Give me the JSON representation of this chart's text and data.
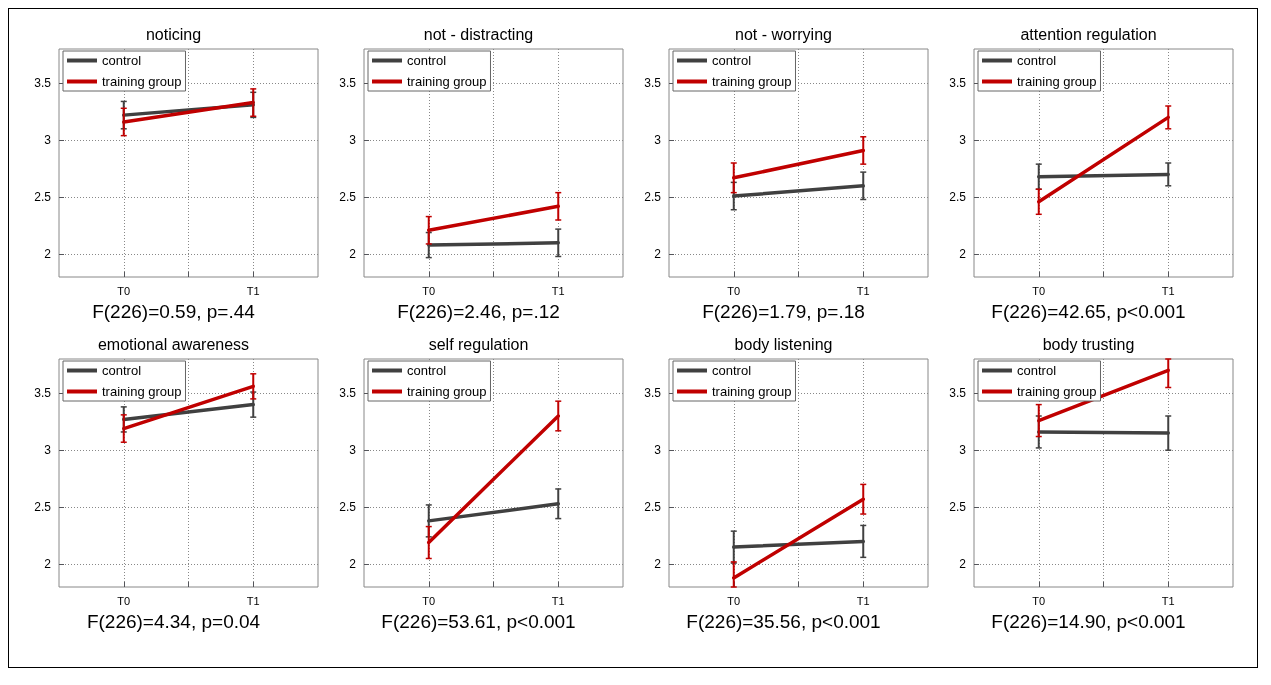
{
  "chart_data": [
    {
      "type": "line",
      "title": "noticing",
      "categories": [
        "T0",
        "T1"
      ],
      "ylim": [
        1.8,
        3.8
      ],
      "yticks": [
        2,
        2.5,
        3,
        3.5
      ],
      "grid": true,
      "legend": "top left",
      "marker": "none",
      "annotations": [
        "F(226)=0.59, p=.44"
      ],
      "series": [
        {
          "name": "control",
          "color": "#404040",
          "values": [
            3.22,
            3.31
          ],
          "errors": [
            0.12,
            0.11
          ]
        },
        {
          "name": "training group",
          "color": "#c00000",
          "values": [
            3.16,
            3.33
          ],
          "errors": [
            0.12,
            0.12
          ]
        }
      ]
    },
    {
      "type": "line",
      "title": "not - distracting",
      "categories": [
        "T0",
        "T1"
      ],
      "ylim": [
        1.8,
        3.8
      ],
      "yticks": [
        2,
        2.5,
        3,
        3.5
      ],
      "grid": true,
      "legend": "top left",
      "marker": "none",
      "annotations": [
        "F(226)=2.46, p=.12"
      ],
      "series": [
        {
          "name": "control",
          "color": "#404040",
          "values": [
            2.08,
            2.1
          ],
          "errors": [
            0.11,
            0.12
          ]
        },
        {
          "name": "training group",
          "color": "#c00000",
          "values": [
            2.21,
            2.42
          ],
          "errors": [
            0.12,
            0.12
          ]
        }
      ]
    },
    {
      "type": "line",
      "title": "not - worrying",
      "categories": [
        "T0",
        "T1"
      ],
      "ylim": [
        1.8,
        3.8
      ],
      "yticks": [
        2,
        2.5,
        3,
        3.5
      ],
      "grid": true,
      "legend": "top left",
      "marker": "none",
      "annotations": [
        "F(226)=1.79, p=.18"
      ],
      "series": [
        {
          "name": "control",
          "color": "#404040",
          "values": [
            2.51,
            2.6
          ],
          "errors": [
            0.12,
            0.12
          ]
        },
        {
          "name": "training group",
          "color": "#c00000",
          "values": [
            2.67,
            2.91
          ],
          "errors": [
            0.13,
            0.12
          ]
        }
      ]
    },
    {
      "type": "line",
      "title": "attention regulation",
      "categories": [
        "T0",
        "T1"
      ],
      "ylim": [
        1.8,
        3.8
      ],
      "yticks": [
        2,
        2.5,
        3,
        3.5
      ],
      "grid": true,
      "legend": "top left",
      "marker": "none",
      "annotations": [
        "F(226)=42.65, p<0.001"
      ],
      "series": [
        {
          "name": "control",
          "color": "#404040",
          "values": [
            2.68,
            2.7
          ],
          "errors": [
            0.11,
            0.1
          ]
        },
        {
          "name": "training group",
          "color": "#c00000",
          "values": [
            2.46,
            3.2
          ],
          "errors": [
            0.11,
            0.1
          ]
        }
      ]
    },
    {
      "type": "line",
      "title": "emotional awareness",
      "categories": [
        "T0",
        "T1"
      ],
      "ylim": [
        1.8,
        3.8
      ],
      "yticks": [
        2,
        2.5,
        3,
        3.5
      ],
      "grid": true,
      "legend": "top left",
      "marker": "none",
      "annotations": [
        "F(226)=4.34, p=0.04"
      ],
      "series": [
        {
          "name": "control",
          "color": "#404040",
          "values": [
            3.27,
            3.4
          ],
          "errors": [
            0.11,
            0.11
          ]
        },
        {
          "name": "training group",
          "color": "#c00000",
          "values": [
            3.19,
            3.56
          ],
          "errors": [
            0.12,
            0.11
          ]
        }
      ]
    },
    {
      "type": "line",
      "title": "self regulation",
      "categories": [
        "T0",
        "T1"
      ],
      "ylim": [
        1.8,
        3.8
      ],
      "yticks": [
        2,
        2.5,
        3,
        3.5
      ],
      "grid": true,
      "legend": "top left",
      "marker": "none",
      "annotations": [
        "F(226)=53.61, p<0.001"
      ],
      "series": [
        {
          "name": "control",
          "color": "#404040",
          "values": [
            2.38,
            2.53
          ],
          "errors": [
            0.14,
            0.13
          ]
        },
        {
          "name": "training group",
          "color": "#c00000",
          "values": [
            2.19,
            3.3
          ],
          "errors": [
            0.14,
            0.13
          ]
        }
      ]
    },
    {
      "type": "line",
      "title": "body listening",
      "categories": [
        "T0",
        "T1"
      ],
      "ylim": [
        1.8,
        3.8
      ],
      "yticks": [
        2,
        2.5,
        3,
        3.5
      ],
      "grid": true,
      "legend": "top left",
      "marker": "none",
      "annotations": [
        "F(226)=35.56, p<0.001"
      ],
      "series": [
        {
          "name": "control",
          "color": "#404040",
          "values": [
            2.15,
            2.2
          ],
          "errors": [
            0.14,
            0.14
          ]
        },
        {
          "name": "training group",
          "color": "#c00000",
          "values": [
            1.88,
            2.57
          ],
          "errors": [
            [
              1.8,
              2.02
            ],
            0.13
          ]
        }
      ]
    },
    {
      "type": "line",
      "title": "body trusting",
      "categories": [
        "T0",
        "T1"
      ],
      "ylim": [
        1.8,
        3.8
      ],
      "yticks": [
        2,
        2.5,
        3,
        3.5
      ],
      "grid": true,
      "legend": "top left",
      "marker": "none",
      "annotations": [
        "F(226)=14.90, p<0.001"
      ],
      "series": [
        {
          "name": "control",
          "color": "#404040",
          "values": [
            3.16,
            3.15
          ],
          "errors": [
            0.14,
            0.15
          ]
        },
        {
          "name": "training group",
          "color": "#c00000",
          "values": [
            3.26,
            3.7
          ],
          "errors": [
            0.14,
            [
              3.55,
              3.8
            ]
          ]
        }
      ]
    }
  ]
}
